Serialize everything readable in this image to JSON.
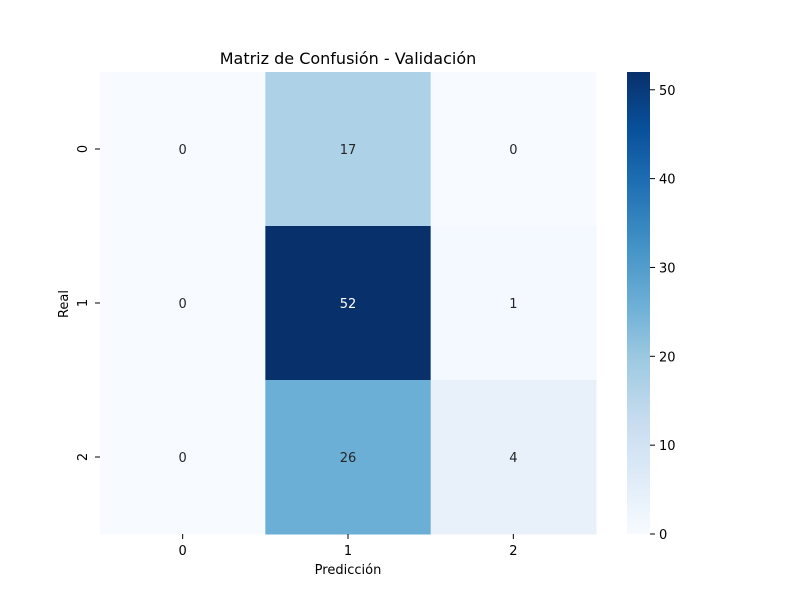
{
  "chart_data": {
    "type": "heatmap",
    "title": "Matriz de Confusión - Validación",
    "xlabel": "Predicción",
    "ylabel": "Real",
    "x_categories": [
      "0",
      "1",
      "2"
    ],
    "y_categories": [
      "0",
      "1",
      "2"
    ],
    "values": [
      [
        0,
        17,
        0
      ],
      [
        0,
        52,
        1
      ],
      [
        0,
        26,
        4
      ]
    ],
    "colormap": "Blues",
    "colorbar": {
      "min": 0,
      "max": 52,
      "ticks": [
        0,
        10,
        20,
        30,
        40,
        50
      ]
    },
    "annotations": true
  }
}
